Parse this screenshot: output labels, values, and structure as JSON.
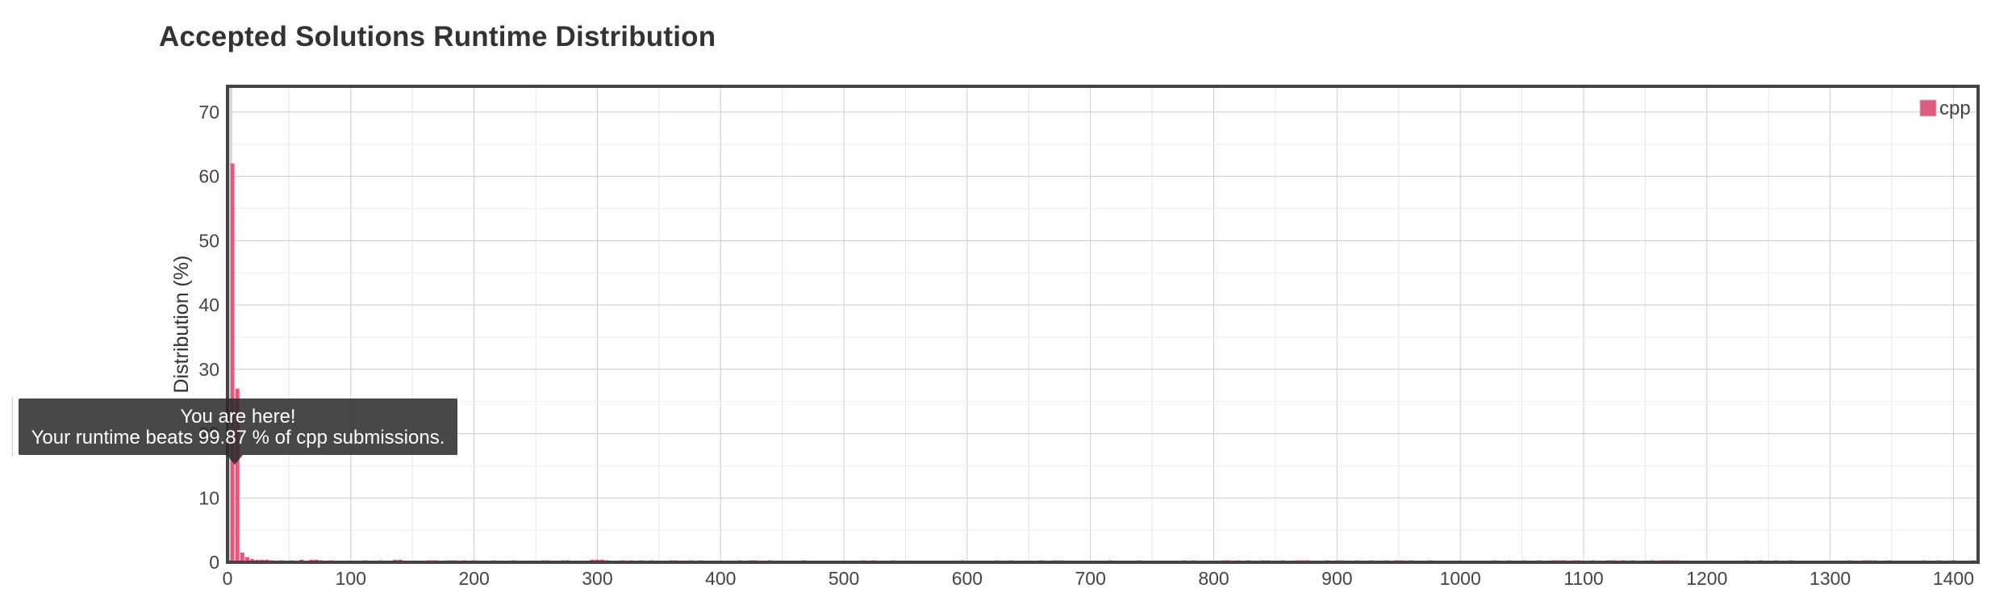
{
  "chart_data": {
    "type": "bar",
    "title": "Accepted Solutions Runtime Distribution",
    "xlabel": "",
    "ylabel": "Distribution (%)",
    "xlim": [
      0,
      1420
    ],
    "ylim": [
      0,
      74
    ],
    "xticks": [
      "0",
      "100",
      "200",
      "300",
      "400",
      "500",
      "600",
      "700",
      "800",
      "900",
      "1000",
      "1100",
      "1200",
      "1300",
      "1400"
    ],
    "yticks": [
      "0",
      "10",
      "20",
      "30",
      "40",
      "50",
      "60",
      "70"
    ],
    "grid": true,
    "legend": "top-right",
    "bar_color": "#e05a7e",
    "highlight_color": "#d9d9d9",
    "highlight_range": [
      0,
      4
    ],
    "series": [
      {
        "name": "cpp",
        "x": [
          4,
          8,
          12,
          16,
          20,
          24,
          28,
          32,
          36,
          44,
          52,
          60,
          68,
          72,
          76,
          84,
          112,
          124,
          136,
          140,
          164,
          168,
          180,
          184,
          192,
          200,
          216,
          232,
          256,
          260,
          272,
          276,
          296,
          300,
          304,
          308,
          320,
          328,
          336,
          344,
          360,
          364,
          376,
          384,
          416,
          424,
          428,
          440,
          468,
          516,
          524,
          540,
          596,
          624,
          636,
          660,
          672,
          676,
          716,
          740,
          776,
          784,
          808,
          812,
          820,
          828,
          840,
          844,
          856,
          868,
          872,
          876,
          892,
          900,
          904,
          916,
          928,
          940,
          948,
          952,
          960,
          976,
          1028,
          1040,
          1052,
          1064,
          1076,
          1080,
          1084,
          1092,
          1096,
          1108,
          1120,
          1124,
          1132,
          1140,
          1156,
          1164,
          1168,
          1172,
          1176,
          1232,
          1244,
          1256,
          1268,
          1316,
          1328,
          1332,
          1336,
          1348,
          1376,
          1388,
          1400,
          1416
        ],
        "values": [
          62,
          27,
          1.5,
          0.8,
          0.5,
          0.4,
          0.4,
          0.4,
          0.3,
          0.3,
          0.3,
          0.4,
          0.4,
          0.4,
          0.3,
          0.3,
          0.3,
          0.3,
          0.4,
          0.4,
          0.3,
          0.3,
          0.3,
          0.3,
          0.3,
          0.3,
          0.3,
          0.3,
          0.3,
          0.3,
          0.3,
          0.3,
          0.4,
          0.4,
          0.4,
          0.3,
          0.3,
          0.3,
          0.3,
          0.3,
          0.3,
          0.3,
          0.3,
          0.3,
          0.3,
          0.3,
          0.3,
          0.3,
          0.3,
          0.3,
          0.3,
          0.3,
          0.3,
          0.3,
          0.3,
          0.3,
          0.3,
          0.3,
          0.3,
          0.3,
          0.3,
          0.3,
          0.3,
          0.3,
          0.3,
          0.3,
          0.3,
          0.3,
          0.3,
          0.3,
          0.3,
          0.3,
          0.3,
          0.3,
          0.3,
          0.3,
          0.3,
          0.3,
          0.3,
          0.3,
          0.3,
          0.3,
          0.3,
          0.3,
          0.3,
          0.3,
          0.3,
          0.3,
          0.3,
          0.3,
          0.3,
          0.3,
          0.3,
          0.3,
          0.3,
          0.3,
          0.3,
          0.3,
          0.3,
          0.3,
          0.3,
          0.3,
          0.3,
          0.3,
          0.3,
          0.3,
          0.3,
          0.3,
          0.3,
          0.3,
          0.3,
          0.3,
          0.3,
          0.3
        ]
      }
    ]
  },
  "tooltip": {
    "line1": "You are here!",
    "line2": "Your runtime beats 99.87 % of cpp submissions."
  }
}
